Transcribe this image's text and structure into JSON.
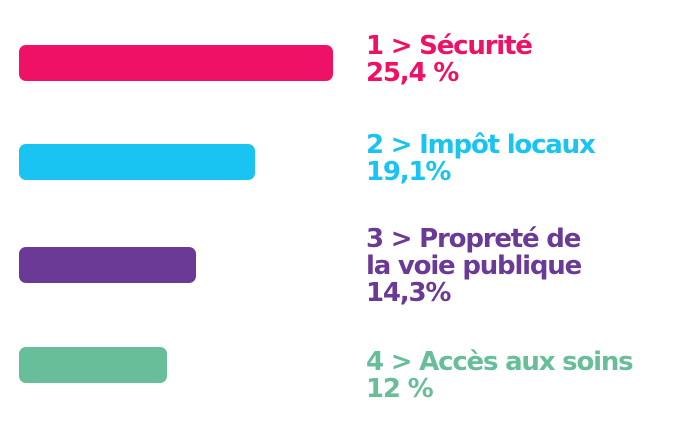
{
  "chart_data": {
    "type": "bar",
    "orientation": "horizontal",
    "title": "",
    "xlabel": "",
    "ylabel": "",
    "grid": false,
    "legend": "none",
    "xlim": [
      0,
      25.4
    ],
    "categories": [
      "1 > Sécurité",
      "2 > Impôt locaux",
      "3 > Propreté de la voie publique",
      "4 > Accès aux soins"
    ],
    "category_lines": [
      [
        "1 > Sécurité"
      ],
      [
        "2 > Impôt locaux"
      ],
      [
        "3 > Propreté de",
        "la voie publique"
      ],
      [
        "4 > Accès aux soins"
      ]
    ],
    "values": [
      25.4,
      19.1,
      14.3,
      12
    ],
    "value_labels": [
      "25,4 %",
      "19,1%",
      "14,3%",
      "12 %"
    ],
    "colors": [
      "#ee1166",
      "#19c3f2",
      "#6a3a96",
      "#67be99"
    ]
  }
}
